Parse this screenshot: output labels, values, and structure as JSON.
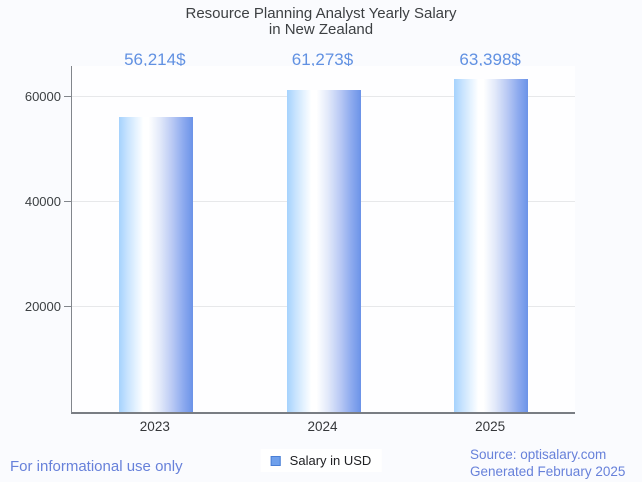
{
  "window": {
    "title_line1": "Resource Planning Analyst Yearly Salary",
    "title_line2": "in New Zealand"
  },
  "chart_data": {
    "type": "bar",
    "title": "Resource Planning Analyst Yearly Salary in New Zealand",
    "categories": [
      "2023",
      "2024",
      "2025"
    ],
    "series": [
      {
        "name": "Salary in USD",
        "values": [
          56214,
          61273,
          63398
        ]
      }
    ],
    "value_labels": [
      "56,214$",
      "61,273$",
      "63,398$"
    ],
    "xlabel": "",
    "ylabel": "",
    "yticks": [
      20000,
      40000,
      60000
    ],
    "ytick_labels": [
      "20000",
      "40000",
      "60000"
    ],
    "ylim": [
      0,
      65900
    ],
    "grid": true,
    "legend_position": "bottom-center",
    "bar_gradient": [
      "#a5d2fd",
      "#ffffff",
      "#6b93e8"
    ],
    "value_label_color": "#6191e2"
  },
  "legend": {
    "label": "Salary in USD"
  },
  "footer": {
    "disclaimer": "For informational use only",
    "source": "Source: optisalary.com",
    "generated": "Generated February 2025"
  },
  "colors": {
    "accent_blue": "#6191e2",
    "footer_blue": "#6781da",
    "axis_gray": "#82868c",
    "grid_gray": "#e7e8ea",
    "text_dark": "#3d4043",
    "background": "#fafbfe",
    "legend_marker_fill": "#6fa0ec",
    "legend_marker_border": "#4a7fd6"
  }
}
